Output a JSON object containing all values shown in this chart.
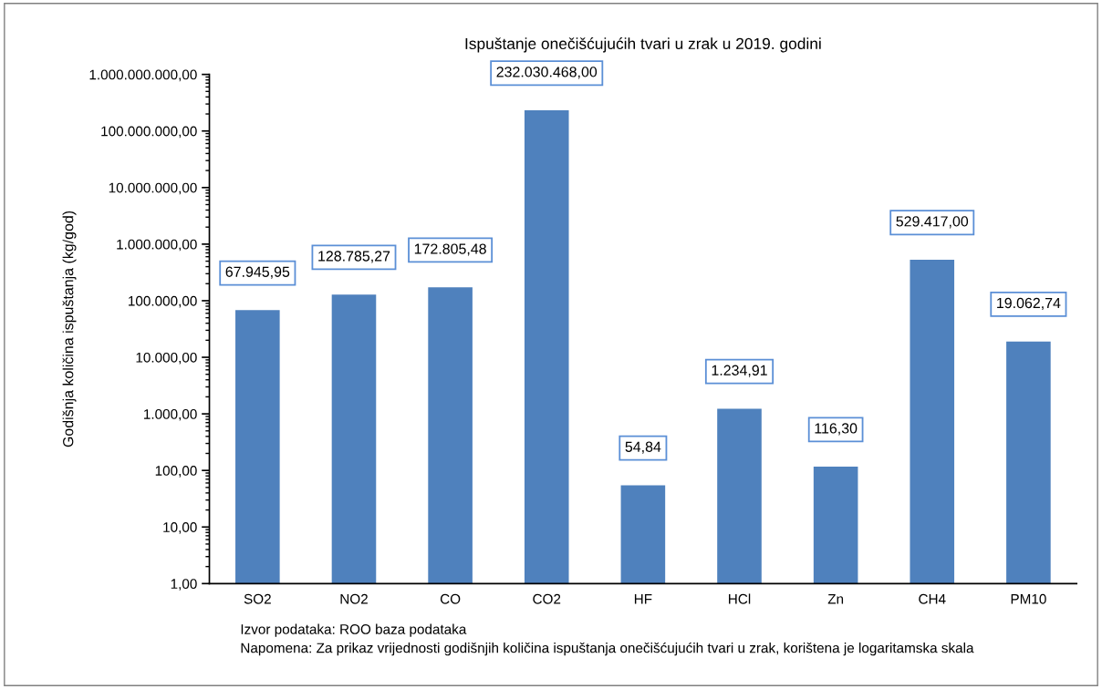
{
  "chart_data": {
    "type": "bar",
    "title": "Ispuštanje onečišćujućih tvari u zrak u 2019. godini",
    "ylabel": "Godišnja količina ispuštanja (kg/god)",
    "categories": [
      "SO2",
      "NO2",
      "CO",
      "CO2",
      "HF",
      "HCl",
      "Zn",
      "CH4",
      "PM10"
    ],
    "values": [
      67945.95,
      128785.27,
      172805.48,
      232030468.0,
      54.84,
      1234.91,
      116.3,
      529417.0,
      19062.74
    ],
    "value_labels": [
      "67.945,95",
      "128.785,27",
      "172.805,48",
      "232.030.468,00",
      "54,84",
      "1.234,91",
      "116,30",
      "529.417,00",
      "19.062,74"
    ],
    "color": "#4f81bd",
    "log": "y",
    "ylim": [
      1,
      1000000000
    ],
    "yticks": [
      {
        "value": 1,
        "label": "1,00"
      },
      {
        "value": 10,
        "label": "10,00"
      },
      {
        "value": 100,
        "label": "100,00"
      },
      {
        "value": 1000,
        "label": "1.000,00"
      },
      {
        "value": 10000,
        "label": "10.000,00"
      },
      {
        "value": 100000,
        "label": "100.000,00"
      },
      {
        "value": 1000000,
        "label": "1.000.000,00"
      },
      {
        "value": 10000000,
        "label": "10.000.000,00"
      },
      {
        "value": 100000000,
        "label": "100.000.000,00"
      },
      {
        "value": 1000000000,
        "label": "1.000.000.000,00"
      }
    ],
    "grid": false,
    "legend": false,
    "annotations": [
      "Izvor podataka: ROO baza podataka",
      "Napomena: Za prikaz vrijednosti godišnjih količina ispuštanja onečišćujućih tvari u zrak, korištena je logaritamska skala"
    ]
  }
}
